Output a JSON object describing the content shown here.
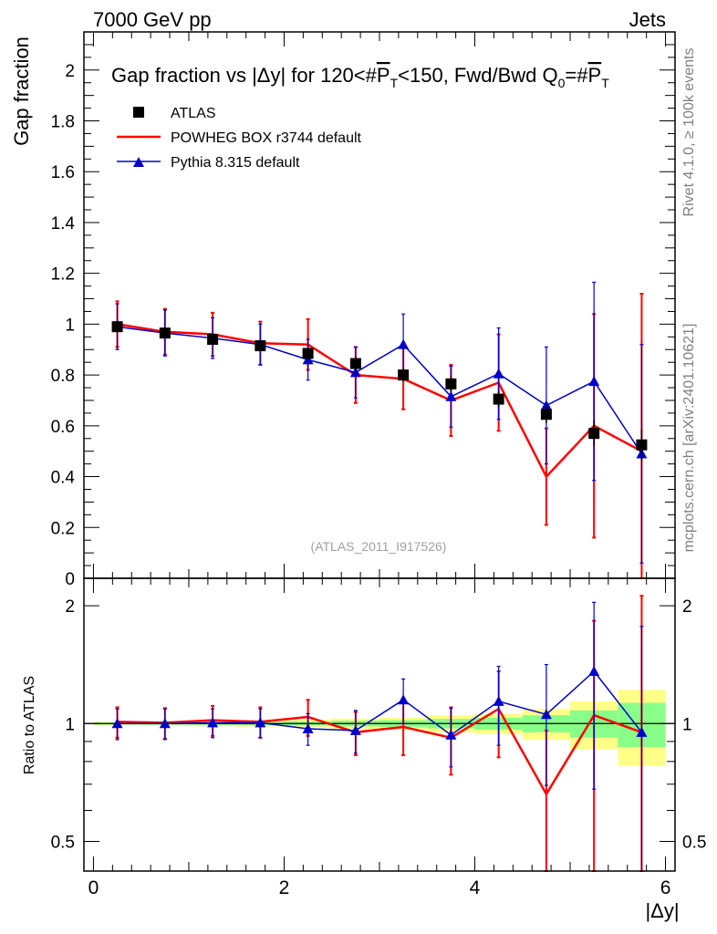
{
  "header": {
    "left": "7000 GeV pp",
    "right": "Jets"
  },
  "side": {
    "rivet": "Rivet 4.1.0, ≥ 100k events",
    "mcplots": "mcplots.cern.ch [arXiv:2401.10621]"
  },
  "colors": {
    "data": "#000000",
    "powheg": "#ff0000",
    "pythia": "#0000cc",
    "band_inner": "#88ff88",
    "band_outer": "#ffff88"
  },
  "chart_data": [
    {
      "type": "scatter",
      "panel": "main",
      "title": "Gap fraction vs |Δy| for 120<#P̅T<150, Fwd/Bwd Q0=#P̅T",
      "title_parts": {
        "pre": "Gap fraction vs |Δy| for 120<#",
        "p1": "P",
        "sub1": "T",
        "mid": "<150, Fwd/Bwd Q",
        "sub0": "0",
        "eq": "=#",
        "p2": "P",
        "sub2": "T"
      },
      "ylabel": "Gap fraction",
      "analysis": "(ATLAS_2011_I917526)",
      "xlim": [
        -0.1,
        6.1
      ],
      "ylim": [
        0,
        2.15
      ],
      "yticks": [
        "0",
        "0.2",
        "0.4",
        "0.6",
        "0.8",
        "1",
        "1.2",
        "1.4",
        "1.6",
        "1.8",
        "2"
      ],
      "x": [
        0.25,
        0.75,
        1.25,
        1.75,
        2.25,
        2.75,
        3.25,
        3.75,
        4.25,
        4.75,
        5.25,
        5.75
      ],
      "legend": {
        "position": "top-left",
        "entries": [
          "ATLAS",
          "POWHEG BOX r3744 default",
          "Pythia 8.315 default"
        ]
      },
      "series": [
        {
          "name": "ATLAS",
          "values": [
            0.99,
            0.965,
            0.94,
            0.915,
            0.885,
            0.845,
            0.8,
            0.765,
            0.705,
            0.645,
            0.57,
            0.525
          ],
          "errors": [
            0.02,
            0.02,
            0.02,
            0.02,
            0.02,
            0.025,
            0.025,
            0.03,
            0.03,
            0.035,
            0.05,
            0.06
          ]
        },
        {
          "name": "POWHEG BOX r3744 default",
          "values": [
            1.0,
            0.97,
            0.96,
            0.925,
            0.92,
            0.8,
            0.785,
            0.7,
            0.77,
            0.4,
            0.6,
            0.5
          ],
          "errors": [
            0.09,
            0.09,
            0.085,
            0.085,
            0.1,
            0.11,
            0.12,
            0.14,
            0.19,
            0.19,
            0.44,
            0.62
          ]
        },
        {
          "name": "Pythia 8.315 default",
          "values": [
            0.99,
            0.965,
            0.945,
            0.92,
            0.86,
            0.81,
            0.92,
            0.715,
            0.805,
            0.68,
            0.775,
            0.49
          ],
          "errors": [
            0.09,
            0.09,
            0.08,
            0.08,
            0.08,
            0.1,
            0.12,
            0.12,
            0.18,
            0.23,
            0.39,
            0.43
          ]
        }
      ]
    },
    {
      "type": "scatter",
      "panel": "ratio",
      "ylabel": "Ratio to ATLAS",
      "xlabel": "|Δy|",
      "xlim": [
        -0.1,
        6.1
      ],
      "ylim": [
        0.42,
        2.35
      ],
      "log_y": true,
      "xticks": [
        "0",
        "2",
        "4",
        "6"
      ],
      "yticks": [
        "0.5",
        "1",
        "2"
      ],
      "x": [
        0.25,
        0.75,
        1.25,
        1.75,
        2.25,
        2.75,
        3.25,
        3.75,
        4.25,
        4.75,
        5.25,
        5.75
      ],
      "bands": {
        "inner": [
          0.006,
          0.007,
          0.008,
          0.009,
          0.012,
          0.017,
          0.02,
          0.028,
          0.035,
          0.05,
          0.08,
          0.13
        ],
        "outer": [
          0.012,
          0.013,
          0.015,
          0.018,
          0.022,
          0.03,
          0.035,
          0.05,
          0.06,
          0.09,
          0.14,
          0.22
        ]
      },
      "series": [
        {
          "name": "POWHEG BOX r3744 default",
          "values": [
            1.01,
            1.005,
            1.02,
            1.01,
            1.04,
            0.95,
            0.98,
            0.92,
            1.09,
            0.66,
            1.05,
            0.95
          ],
          "errors": [
            0.09,
            0.09,
            0.09,
            0.09,
            0.11,
            0.12,
            0.15,
            0.18,
            0.27,
            0.3,
            0.78,
            1.17
          ]
        },
        {
          "name": "Pythia 8.315 default",
          "values": [
            1.0,
            1.0,
            1.005,
            1.005,
            0.97,
            0.96,
            1.15,
            0.935,
            1.14,
            1.055,
            1.36,
            0.95
          ],
          "errors": [
            0.09,
            0.09,
            0.085,
            0.085,
            0.09,
            0.12,
            0.15,
            0.16,
            0.26,
            0.36,
            0.68,
            0.82
          ]
        }
      ]
    }
  ]
}
